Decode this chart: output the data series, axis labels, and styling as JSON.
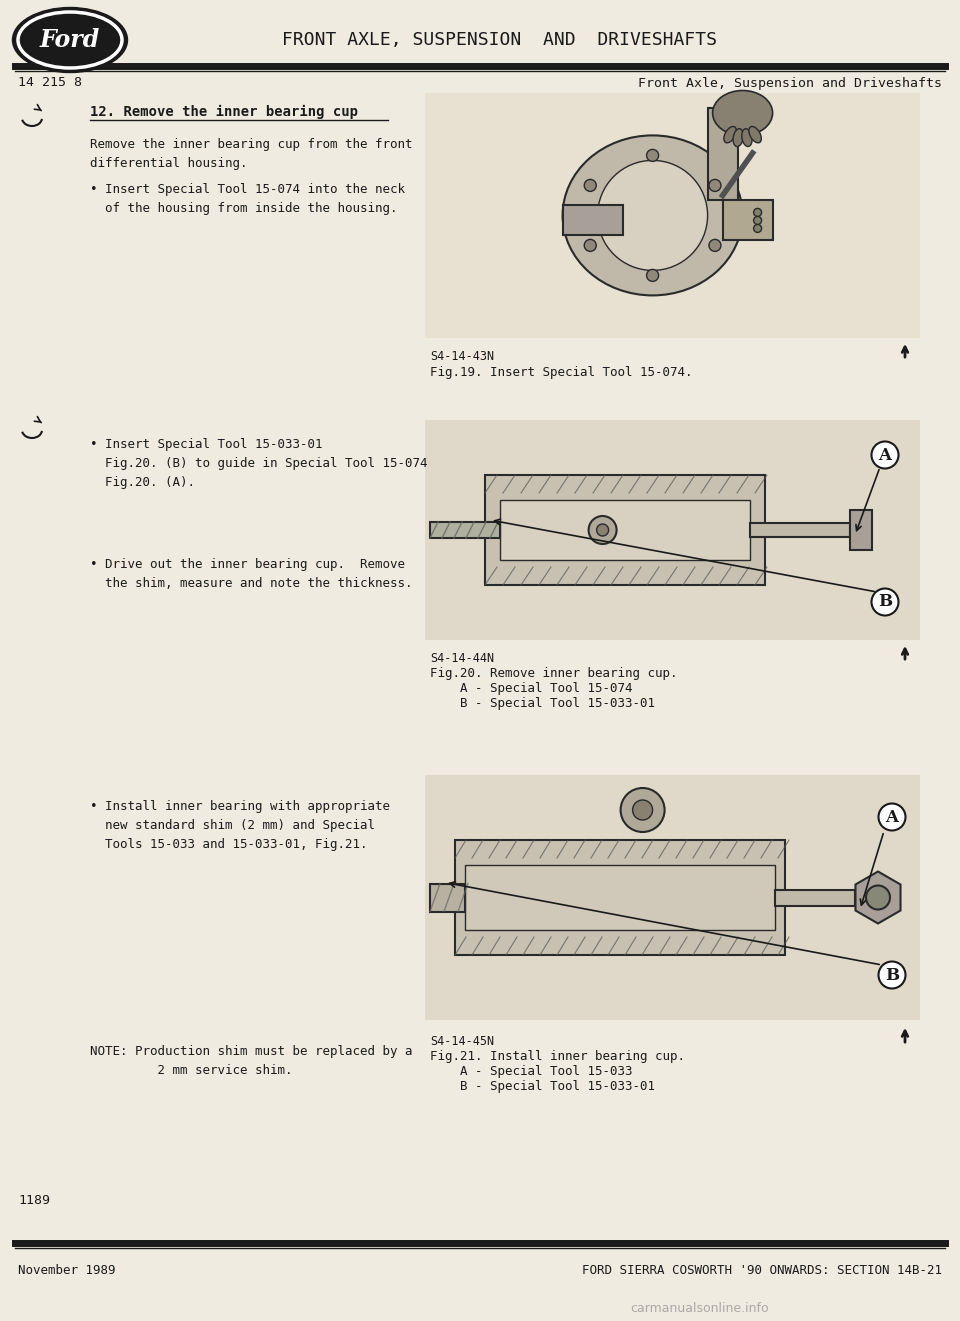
{
  "bg_color": "#f0ebe0",
  "title_header": "FRONT AXLE, SUSPENSION  AND  DRIVESHAFTS",
  "page_ref": "14 215 8",
  "page_title": "Front Axle, Suspension and Driveshafts",
  "footer_left": "November 1989",
  "footer_right": "FORD SIERRA COSWORTH '90 ONWARDS: SECTION 14B-21",
  "watermark": "carmanualsonline.info",
  "page_number": "1189",
  "section_heading": "12. Remove the inner bearing cup",
  "para1": "Remove the inner bearing cup from the front\ndifferential housing.",
  "bullet1": "• Insert Special Tool 15-074 into the neck\n  of the housing from inside the housing.",
  "bullet2": "• Insert Special Tool 15-033-01\n  Fig.20. (B) to guide in Special Tool 15-074\n  Fig.20. (A).",
  "bullet3": "• Drive out the inner bearing cup.  Remove\n  the shim, measure and note the thickness.",
  "bullet4": "• Install inner bearing with appropriate\n  new standard shim (2 mm) and Special\n  Tools 15-033 and 15-033-01, Fig.21.",
  "note": "NOTE: Production shim must be replaced by a\n         2 mm service shim.",
  "fig1_label": "S4-14-43N",
  "fig1_caption": "Fig.19. Insert Special Tool 15-074.",
  "fig2_label": "S4-14-44N",
  "fig2_caption_line1": "Fig.20. Remove inner bearing cup.",
  "fig2_caption_line2": "    A - Special Tool 15-074",
  "fig2_caption_line3": "    B - Special Tool 15-033-01",
  "fig3_label": "S4-14-45N",
  "fig3_caption_line1": "Fig.21. Install inner bearing cup.",
  "fig3_caption_line2": "    A - Special Tool 15-033",
  "fig3_caption_line3": "    B - Special Tool 15-033-01"
}
